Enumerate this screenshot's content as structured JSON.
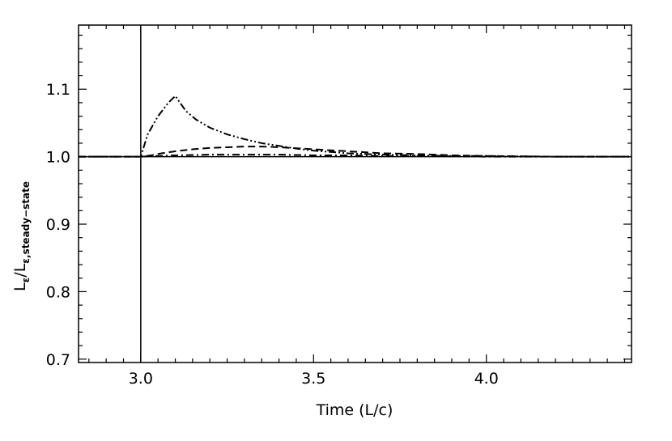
{
  "chart_data": {
    "type": "line",
    "title": "",
    "xlabel": "Time (L/c)",
    "ylabel": {
      "main": "L",
      "sub1": "ε",
      "slash": "/L",
      "sub2": "ε,steady−state"
    },
    "xlim": [
      2.82,
      4.42
    ],
    "ylim": [
      0.695,
      1.195
    ],
    "x_ticks": [
      3.0,
      3.5,
      4.0
    ],
    "x_tick_labels": [
      "3.0",
      "3.5",
      "4.0"
    ],
    "y_ticks": [
      0.7,
      0.8,
      0.9,
      1.0,
      1.1
    ],
    "y_tick_labels": [
      "0.7",
      "0.8",
      "0.9",
      "1.0",
      "1.1"
    ],
    "grid": false,
    "vline_x": 3.0,
    "series": [
      {
        "style": "dash-dot-dot",
        "x": [
          2.82,
          3.0,
          3.02,
          3.05,
          3.08,
          3.1,
          3.13,
          3.16,
          3.2,
          3.25,
          3.3,
          3.35,
          3.4,
          3.45,
          3.5,
          3.55,
          3.6,
          3.65,
          3.7,
          3.8,
          3.9,
          4.0,
          4.2,
          4.42
        ],
        "y": [
          1.0,
          1.0,
          1.033,
          1.06,
          1.08,
          1.09,
          1.068,
          1.055,
          1.043,
          1.033,
          1.026,
          1.02,
          1.016,
          1.012,
          1.009,
          1.007,
          1.005,
          1.004,
          1.003,
          1.002,
          1.001,
          1.001,
          1.0,
          1.0
        ]
      },
      {
        "style": "dashed",
        "x": [
          2.82,
          3.0,
          3.03,
          3.06,
          3.1,
          3.15,
          3.2,
          3.25,
          3.3,
          3.35,
          3.4,
          3.5,
          3.6,
          3.7,
          3.8,
          3.9,
          4.0,
          4.2,
          4.42
        ],
        "y": [
          1.0,
          1.0,
          1.002,
          1.005,
          1.008,
          1.011,
          1.013,
          1.014,
          1.015,
          1.015,
          1.014,
          1.011,
          1.008,
          1.005,
          1.004,
          1.002,
          1.001,
          1.0,
          1.0
        ]
      },
      {
        "style": "dash-dot",
        "x": [
          2.82,
          3.0,
          3.1,
          3.2,
          3.3,
          3.4,
          3.5,
          3.6,
          3.7,
          3.8,
          4.0,
          4.2,
          4.42
        ],
        "y": [
          1.0,
          1.0,
          1.002,
          1.003,
          1.003,
          1.003,
          1.002,
          1.002,
          1.001,
          1.001,
          1.0,
          1.0,
          1.0
        ]
      },
      {
        "style": "solid",
        "x": [
          2.82,
          4.42
        ],
        "y": [
          1.0,
          1.0
        ]
      }
    ]
  }
}
